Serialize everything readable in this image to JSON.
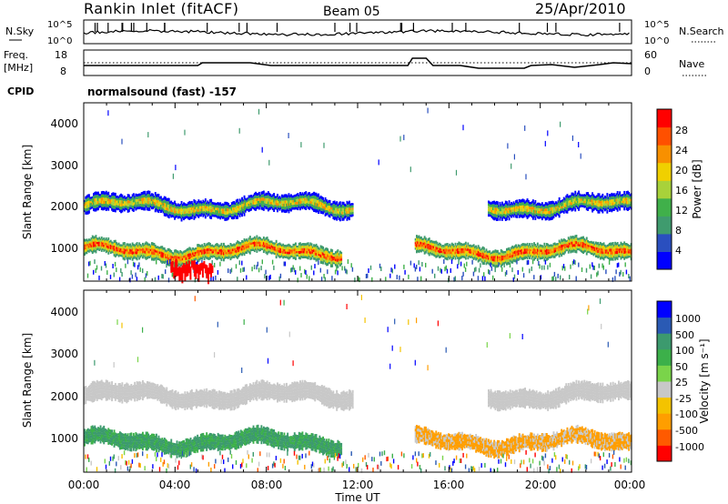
{
  "header": {
    "station": "Rankin Inlet (fitACF)",
    "beam": "Beam 05",
    "date": "25/Apr/2010"
  },
  "noise_panel": {
    "left_label": "N.Sky",
    "left_ticks": [
      "10^5",
      "10^0"
    ],
    "right_label": "N.Search",
    "right_ticks": [
      "10^5",
      "10^0"
    ]
  },
  "freq_panel": {
    "left_label_1": "Freq.",
    "left_label_2": "[MHz]",
    "left_ticks": [
      "18",
      "8"
    ],
    "right_label": "Nave",
    "right_ticks": [
      "60",
      "0"
    ]
  },
  "cpid": {
    "label": "CPID",
    "text": "normalsound (fast) -157"
  },
  "colors": {
    "power": [
      "#0000ff",
      "#2a4fbf",
      "#3f9b6e",
      "#40b04a",
      "#a8d23a",
      "#f0d000",
      "#f89000",
      "#ff5000",
      "#ff0000"
    ],
    "velocity": [
      "#ff0000",
      "#ff5a00",
      "#ff9e00",
      "#f4c300",
      "#c8c8c8",
      "#7ad44a",
      "#3cb04a",
      "#3c9a6e",
      "#2a5ab4",
      "#0000ff"
    ],
    "ground_scatter": "#c8c8c8"
  },
  "chart_data": [
    {
      "type": "heatmap",
      "name": "power",
      "ylabel": "Slant Range [km]",
      "yticks": [
        "4000",
        "3000",
        "2000",
        "1000"
      ],
      "ylim": [
        180,
        4500
      ],
      "xlim": [
        0,
        24
      ],
      "colorbar_label": "Power [dB]",
      "colorbar_ticks": [
        "28",
        "24",
        "20",
        "16",
        "12",
        "8",
        "4"
      ],
      "colorbar_range": [
        0,
        32
      ],
      "bands": [
        {
          "range_center_km": 2000,
          "width_km": 420,
          "t_segments": [
            [
              0,
              11.8
            ],
            [
              17.7,
              24
            ]
          ]
        },
        {
          "range_center_km": 900,
          "width_km": 380,
          "t_segments": [
            [
              0,
              11.3
            ],
            [
              14.5,
              24
            ]
          ]
        }
      ]
    },
    {
      "type": "heatmap",
      "name": "velocity",
      "ylabel": "Slant Range [km]",
      "yticks": [
        "4000",
        "3000",
        "2000",
        "1000"
      ],
      "ylim": [
        180,
        4500
      ],
      "xlim": [
        0,
        24
      ],
      "colorbar_label": "Velocity [m s⁻¹]",
      "colorbar_ticks": [
        "1000",
        "500",
        "100",
        "50",
        "25",
        "-25",
        "-100",
        "-500",
        "-1000"
      ],
      "xticks": [
        "00:00",
        "04:00",
        "08:00",
        "12:00",
        "16:00",
        "20:00",
        "00:00"
      ],
      "xlabel": "Time UT"
    }
  ]
}
